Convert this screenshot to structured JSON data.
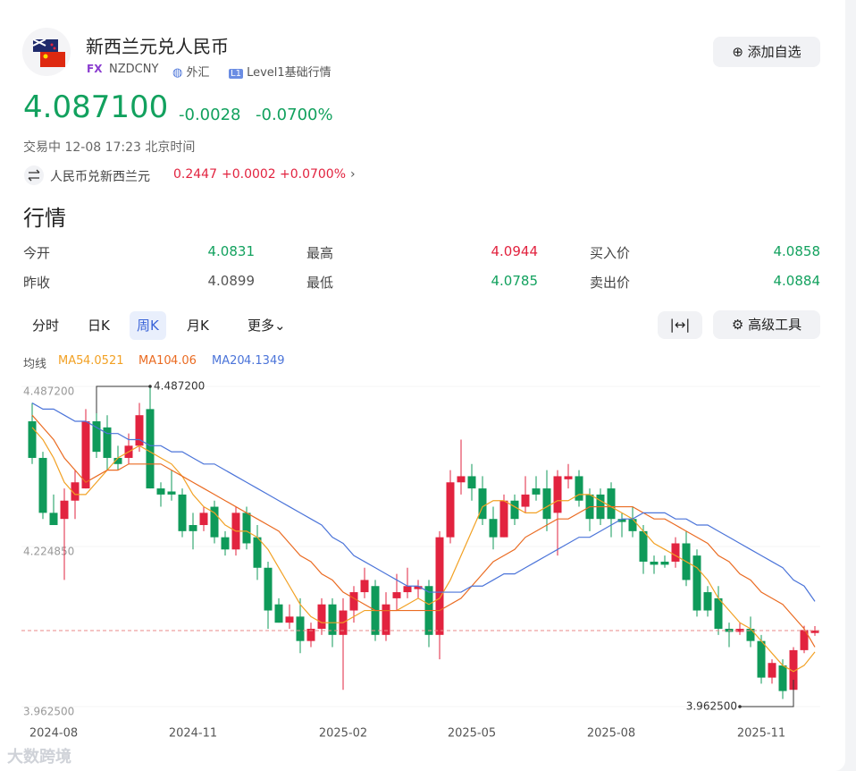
{
  "header": {
    "title": "新西兰元兑人民币",
    "tag": "FX",
    "code": "NZDCNY",
    "market": "外汇",
    "level": "Level1基础行情",
    "add_button": "添加自选"
  },
  "quote": {
    "price": "4.087100",
    "change": "-0.0028",
    "change_pct": "-0.0700%",
    "status": "交易中 12-08 17:23 北京时间"
  },
  "reverse": {
    "label": "人民币兑新西兰元",
    "price": "0.2447",
    "change": "+0.0002",
    "change_pct": "+0.0700%"
  },
  "section_title": "行情",
  "stats": [
    {
      "label": "今开",
      "value": "4.0831",
      "color": "#12a15e"
    },
    {
      "label": "最高",
      "value": "4.0944",
      "color": "#e2233f"
    },
    {
      "label": "买入价",
      "value": "4.0858",
      "color": "#12a15e"
    },
    {
      "label": "昨收",
      "value": "4.0899",
      "color": "#555555"
    },
    {
      "label": "最低",
      "value": "4.0785",
      "color": "#12a15e"
    },
    {
      "label": "卖出价",
      "value": "4.0884",
      "color": "#12a15e"
    }
  ],
  "tabs": [
    "分时",
    "日K",
    "周K",
    "月K",
    "更多"
  ],
  "active_tab": 2,
  "tool_button": "高级工具",
  "watermark": "大数跨境",
  "chart_data": {
    "type": "candlestick",
    "up_color": "#e2233f",
    "down_color": "#0f9a5a",
    "legend_title": "均线",
    "ylim": [
      3.9625,
      4.4872
    ],
    "yticks": [
      {
        "value": 4.4872,
        "label": "4.487200"
      },
      {
        "value": 4.22485,
        "label": "4.224850"
      },
      {
        "value": 3.9625,
        "label": "3.962500"
      }
    ],
    "last_price": 4.0871,
    "max_label": {
      "value": 4.4872,
      "label": "4.487200"
    },
    "min_label": {
      "value": 3.9625,
      "label": "3.962500"
    },
    "categories": [
      null,
      null,
      "2024-08",
      null,
      null,
      null,
      null,
      null,
      null,
      null,
      null,
      null,
      null,
      null,
      null,
      "2024-11",
      null,
      null,
      null,
      null,
      null,
      null,
      null,
      null,
      null,
      null,
      null,
      null,
      null,
      "2025-02",
      null,
      null,
      null,
      null,
      null,
      null,
      null,
      null,
      null,
      null,
      null,
      "2025-05",
      null,
      null,
      null,
      null,
      null,
      null,
      null,
      null,
      null,
      null,
      null,
      null,
      "2025-08",
      null,
      null,
      null,
      null,
      null,
      null,
      null,
      null,
      null,
      null,
      null,
      null,
      null,
      "2025-11",
      null,
      null,
      null,
      null,
      null
    ],
    "open": [
      4.43,
      4.37,
      4.28,
      4.27,
      4.3,
      4.32,
      4.43,
      4.42,
      4.37,
      4.37,
      4.39,
      4.45,
      4.32,
      4.315,
      4.31,
      4.26,
      4.26,
      4.29,
      4.24,
      4.22,
      4.28,
      4.24,
      4.19,
      4.13,
      4.1,
      4.11,
      4.07,
      4.09,
      4.13,
      4.08,
      4.12,
      4.15,
      4.16,
      4.08,
      4.14,
      4.15,
      4.155,
      4.16,
      4.08,
      4.24,
      4.33,
      4.34,
      4.32,
      4.27,
      4.24,
      4.3,
      4.29,
      4.32,
      4.32,
      4.28,
      4.335,
      4.34,
      4.31,
      4.31,
      4.32,
      4.27,
      4.27,
      4.25,
      4.2,
      4.2,
      4.2,
      4.23,
      4.21,
      4.15,
      4.14,
      4.09,
      4.085,
      4.09,
      4.07,
      4.01,
      4.03,
      3.99,
      4.055,
      4.0831
    ],
    "close": [
      4.37,
      4.28,
      4.26,
      4.3,
      4.33,
      4.43,
      4.38,
      4.37,
      4.36,
      4.39,
      4.44,
      4.32,
      4.31,
      4.31,
      4.25,
      4.25,
      4.28,
      4.24,
      4.22,
      4.28,
      4.23,
      4.19,
      4.12,
      4.1,
      4.11,
      4.07,
      4.09,
      4.13,
      4.08,
      4.12,
      4.15,
      4.17,
      4.08,
      4.13,
      4.15,
      4.16,
      4.16,
      4.08,
      4.24,
      4.33,
      4.34,
      4.32,
      4.27,
      4.24,
      4.3,
      4.27,
      4.31,
      4.31,
      4.27,
      4.34,
      4.34,
      4.3,
      4.27,
      4.27,
      4.27,
      4.265,
      4.25,
      4.2,
      4.195,
      4.195,
      4.23,
      4.17,
      4.12,
      4.12,
      4.09,
      4.085,
      4.09,
      4.07,
      4.01,
      4.034,
      3.988,
      4.055,
      4.088,
      4.0871
    ],
    "high": [
      4.46,
      4.38,
      4.31,
      4.32,
      4.35,
      4.45,
      4.48,
      4.44,
      4.39,
      4.41,
      4.46,
      4.4872,
      4.33,
      4.35,
      4.32,
      4.28,
      4.29,
      4.3,
      4.25,
      4.29,
      4.29,
      4.26,
      4.2,
      4.14,
      4.13,
      4.14,
      4.1,
      4.14,
      4.14,
      4.14,
      4.16,
      4.19,
      4.17,
      4.15,
      4.18,
      4.19,
      4.17,
      4.17,
      4.25,
      4.35,
      4.4,
      4.36,
      4.34,
      4.29,
      4.31,
      4.31,
      4.34,
      4.34,
      4.35,
      4.35,
      4.36,
      4.35,
      4.32,
      4.32,
      4.33,
      4.28,
      4.29,
      4.26,
      4.21,
      4.21,
      4.24,
      4.25,
      4.22,
      4.16,
      4.16,
      4.1,
      4.1,
      4.11,
      4.08,
      4.04,
      4.04,
      4.06,
      4.095,
      4.0944
    ],
    "low": [
      4.36,
      4.27,
      4.26,
      4.17,
      4.27,
      4.32,
      4.37,
      4.35,
      4.35,
      4.36,
      4.38,
      4.32,
      4.29,
      4.3,
      4.24,
      4.22,
      4.25,
      4.23,
      4.21,
      4.21,
      4.22,
      4.17,
      4.09,
      4.1,
      4.09,
      4.05,
      4.06,
      4.08,
      4.06,
      3.99,
      4.1,
      4.14,
      4.07,
      4.07,
      4.12,
      4.14,
      4.14,
      4.06,
      4.04,
      4.23,
      4.31,
      4.3,
      4.26,
      4.22,
      4.24,
      4.26,
      4.28,
      4.3,
      4.25,
      4.21,
      4.32,
      4.29,
      4.25,
      4.26,
      4.24,
      4.24,
      4.24,
      4.18,
      4.18,
      4.19,
      4.19,
      4.16,
      4.11,
      4.11,
      4.08,
      4.06,
      4.08,
      4.06,
      4.0,
      4.0,
      3.975,
      3.9625,
      4.05,
      4.0785
    ],
    "series": [
      {
        "name": "MA5",
        "value_label": "4.0521",
        "color": "#f2a124",
        "values": [
          4.42,
          4.4,
          4.37,
          4.33,
          4.31,
          4.31,
          4.33,
          4.35,
          4.37,
          4.38,
          4.39,
          4.38,
          4.37,
          4.36,
          4.34,
          4.31,
          4.29,
          4.28,
          4.26,
          4.25,
          4.25,
          4.24,
          4.22,
          4.19,
          4.16,
          4.13,
          4.11,
          4.1,
          4.1,
          4.1,
          4.11,
          4.12,
          4.12,
          4.12,
          4.12,
          4.13,
          4.14,
          4.13,
          4.14,
          4.17,
          4.21,
          4.25,
          4.29,
          4.3,
          4.3,
          4.29,
          4.28,
          4.28,
          4.29,
          4.3,
          4.3,
          4.31,
          4.31,
          4.3,
          4.29,
          4.28,
          4.27,
          4.25,
          4.23,
          4.22,
          4.21,
          4.2,
          4.19,
          4.17,
          4.14,
          4.12,
          4.1,
          4.09,
          4.07,
          4.05,
          4.03,
          4.02,
          4.03,
          4.0521
        ]
      },
      {
        "name": "MA10",
        "value_label": "4.06",
        "color": "#ea6b22",
        "values": [
          4.44,
          4.42,
          4.4,
          4.37,
          4.35,
          4.33,
          4.34,
          4.35,
          4.35,
          4.36,
          4.36,
          4.36,
          4.36,
          4.35,
          4.34,
          4.33,
          4.32,
          4.31,
          4.3,
          4.29,
          4.28,
          4.27,
          4.26,
          4.25,
          4.23,
          4.21,
          4.2,
          4.18,
          4.17,
          4.15,
          4.14,
          4.13,
          4.12,
          4.12,
          4.12,
          4.12,
          4.12,
          4.12,
          4.12,
          4.13,
          4.14,
          4.16,
          4.18,
          4.2,
          4.21,
          4.22,
          4.24,
          4.25,
          4.26,
          4.27,
          4.27,
          4.28,
          4.29,
          4.29,
          4.29,
          4.29,
          4.29,
          4.28,
          4.27,
          4.27,
          4.26,
          4.25,
          4.24,
          4.23,
          4.21,
          4.2,
          4.18,
          4.17,
          4.15,
          4.14,
          4.13,
          4.11,
          4.09,
          4.06
        ]
      },
      {
        "name": "MA20",
        "value_label": "4.1349",
        "color": "#4b74d9",
        "values": [
          4.46,
          4.45,
          4.45,
          4.44,
          4.43,
          4.43,
          4.42,
          4.41,
          4.41,
          4.4,
          4.4,
          4.39,
          4.39,
          4.38,
          4.38,
          4.37,
          4.36,
          4.36,
          4.35,
          4.34,
          4.33,
          4.32,
          4.31,
          4.3,
          4.29,
          4.28,
          4.27,
          4.26,
          4.24,
          4.23,
          4.21,
          4.2,
          4.19,
          4.18,
          4.17,
          4.16,
          4.16,
          4.15,
          4.15,
          4.15,
          4.15,
          4.16,
          4.16,
          4.17,
          4.18,
          4.18,
          4.19,
          4.2,
          4.21,
          4.22,
          4.23,
          4.24,
          4.24,
          4.25,
          4.26,
          4.27,
          4.27,
          4.28,
          4.28,
          4.28,
          4.27,
          4.27,
          4.26,
          4.26,
          4.25,
          4.24,
          4.23,
          4.22,
          4.21,
          4.2,
          4.19,
          4.17,
          4.16,
          4.1349
        ]
      }
    ]
  }
}
